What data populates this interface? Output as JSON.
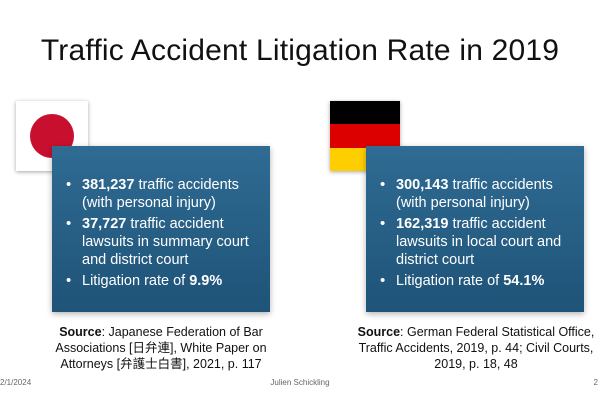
{
  "slide": {
    "title": "Traffic Accident Litigation Rate in 2019",
    "japan": {
      "flag": "japan-flag-icon",
      "flag_colors": {
        "background": "#ffffff",
        "disc": "#c8102e"
      },
      "bullets": [
        {
          "strong": "381,237",
          "text": " traffic accidents (with personal injury)"
        },
        {
          "strong": "37,727",
          "text": " traffic accident lawsuits in summary court and district court"
        },
        {
          "prefix": "Litigation rate of ",
          "strong": "9.9%"
        }
      ],
      "source": {
        "label": "Source",
        "text": ": Japanese Federation of Bar Associations [日弁連], White Paper on Attorneys [弁護士白書], 2021, p. 117"
      }
    },
    "germany": {
      "flag": "germany-flag-icon",
      "flag_colors": [
        "#000000",
        "#dd0000",
        "#ffce00"
      ],
      "bullets": [
        {
          "strong": "300,143",
          "text": " traffic accidents (with personal injury)"
        },
        {
          "strong": "162,319",
          "text": " traffic accident lawsuits in local court and district court"
        },
        {
          "prefix": "Litigation rate of ",
          "strong": "54.1%"
        }
      ],
      "source": {
        "label": "Source",
        "text": ": German Federal Statistical Office, Traffic Accidents, 2019, p. 44; Civil Courts, 2019, p. 18, 48"
      }
    },
    "card_color": "#2a6289",
    "footer": {
      "date": "2/1/2024",
      "author": "Julien Schickling",
      "page": "2"
    }
  }
}
